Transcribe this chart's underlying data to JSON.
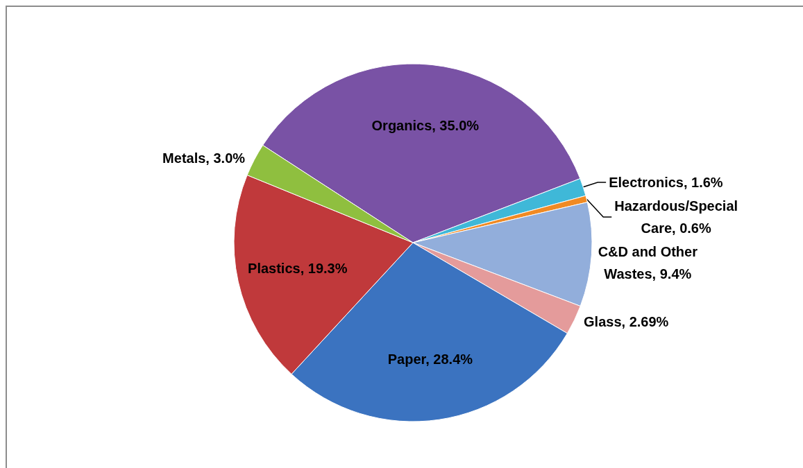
{
  "chart_data": {
    "type": "pie",
    "categories": [
      "Organics",
      "Electronics",
      "Hazardous/Special Care",
      "C&D and Other Wastes",
      "Glass",
      "Paper",
      "Plastics",
      "Metals"
    ],
    "values": [
      35.0,
      1.6,
      0.6,
      9.4,
      2.69,
      28.4,
      19.3,
      3.0
    ],
    "value_labels": [
      "35.0%",
      "1.6%",
      "0.6%",
      "9.4%",
      "2.69%",
      "28.4%",
      "19.3%",
      "3.0%"
    ],
    "colors": [
      "#7952a5",
      "#3fb8d8",
      "#f08a24",
      "#92aedb",
      "#e49b9b",
      "#3b73c0",
      "#c0393b",
      "#8fbf3f"
    ]
  }
}
